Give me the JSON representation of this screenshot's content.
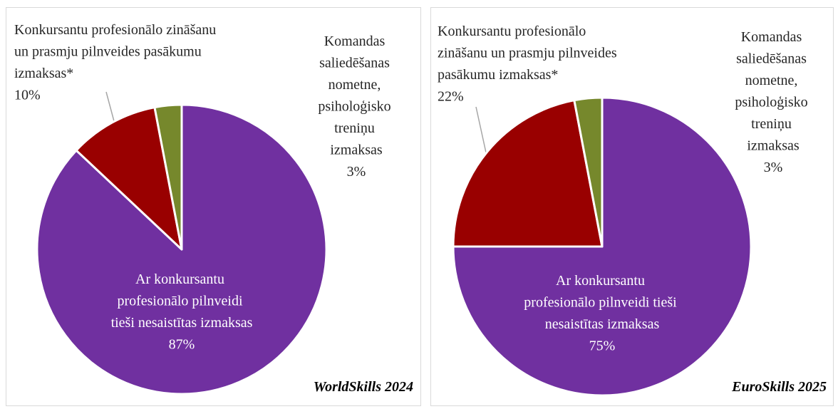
{
  "chart_data": [
    {
      "type": "pie",
      "title": "WorldSkills 2024",
      "categories": [
        "Ar konkursantu profesionālo pilnveidi tieši nesaistītas izmaksas",
        "Konkursantu profesionālo zināšanu un prasmju pilnveides pasākumu izmaksas*",
        "Komandas saliedēšanas nometne, psiholoģisko treniņu izmaksas"
      ],
      "values": [
        87,
        10,
        3
      ],
      "value_labels": [
        "87%",
        "10%",
        "3%"
      ],
      "colors": [
        "#7030a0",
        "#990000",
        "#76882c"
      ]
    },
    {
      "type": "pie",
      "title": "EuroSkills 2025",
      "categories": [
        "Ar konkursantu profesionālo pilnveidi tieši nesaistītas izmaksas",
        "Konkursantu profesionālo zināšanu un prasmju pilnveides pasākumu izmaksas*",
        "Komandas saliedēšanas nometne, psiholoģisko treniņu izmaksas"
      ],
      "values": [
        75,
        22,
        3
      ],
      "value_labels": [
        "75%",
        "22%",
        "3%"
      ],
      "colors": [
        "#7030a0",
        "#990000",
        "#76882c"
      ]
    }
  ]
}
